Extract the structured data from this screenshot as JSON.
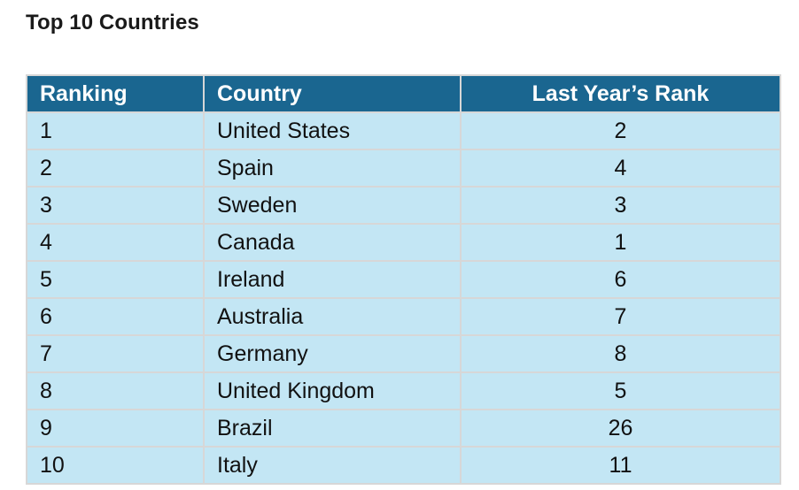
{
  "page": {
    "title": "Top 10 Countries"
  },
  "table": {
    "headers": [
      "Ranking",
      "Country",
      "Last Year’s Rank"
    ],
    "rows": [
      {
        "ranking": "1",
        "country": "United States",
        "last_year": "2"
      },
      {
        "ranking": "2",
        "country": "Spain",
        "last_year": "4"
      },
      {
        "ranking": "3",
        "country": "Sweden",
        "last_year": "3"
      },
      {
        "ranking": "4",
        "country": "Canada",
        "last_year": "1"
      },
      {
        "ranking": "5",
        "country": "Ireland",
        "last_year": "6"
      },
      {
        "ranking": "6",
        "country": "Australia",
        "last_year": "7"
      },
      {
        "ranking": "7",
        "country": "Germany",
        "last_year": "8"
      },
      {
        "ranking": "8",
        "country": "United Kingdom",
        "last_year": "5"
      },
      {
        "ranking": "9",
        "country": "Brazil",
        "last_year": "26"
      },
      {
        "ranking": "10",
        "country": "Italy",
        "last_year": "11"
      }
    ]
  },
  "colors": {
    "header_background": "#1a6690",
    "header_text": "#ffffff",
    "row_background": "#c3e6f4",
    "border": "#d7d7d7"
  }
}
